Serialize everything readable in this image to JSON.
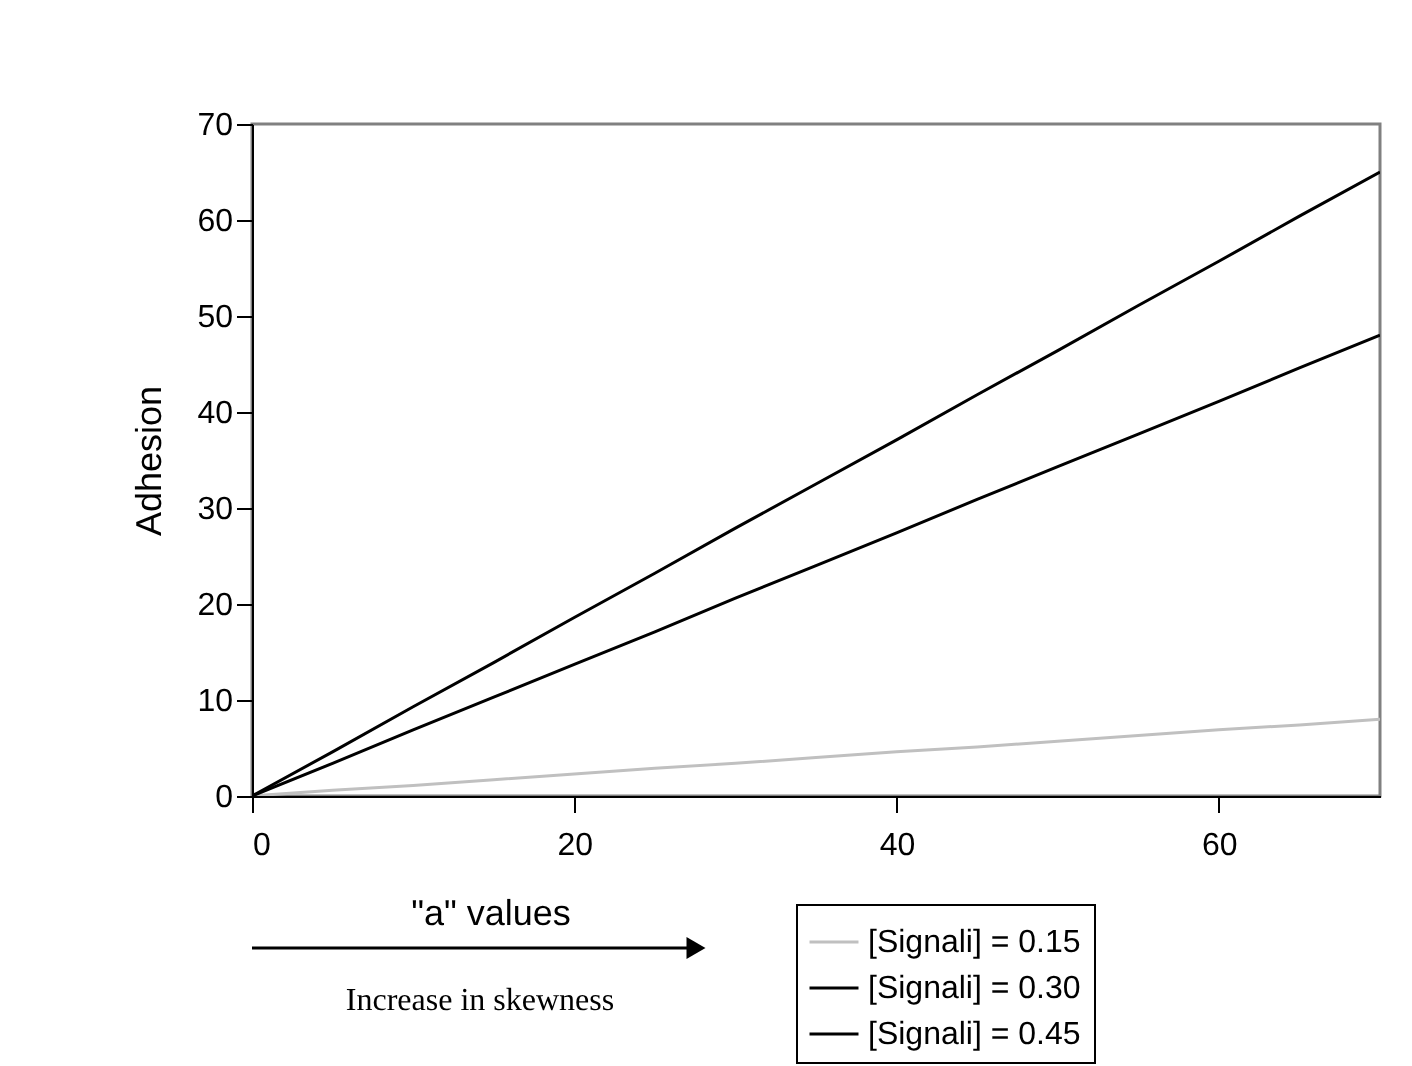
{
  "chart_data": {
    "type": "line",
    "xlabel": "\"a\" values",
    "ylabel": "Adhesion",
    "x": [
      0,
      5,
      10,
      15,
      20,
      25,
      30,
      35,
      40,
      45,
      50,
      55,
      60,
      65,
      70
    ],
    "series": [
      {
        "name": "[Signali] = 0.15",
        "color": "#c0c0c0",
        "values": [
          0,
          0.6,
          1.1,
          1.7,
          2.3,
          2.9,
          3.4,
          4,
          4.6,
          5.1,
          5.7,
          6.3,
          6.9,
          7.4,
          8
        ]
      },
      {
        "name": "[Signali] = 0.30",
        "color": "#000000",
        "values": [
          0,
          3.4,
          6.9,
          10.3,
          13.7,
          17.1,
          20.6,
          24,
          27.4,
          30.9,
          34.3,
          37.7,
          41.1,
          44.6,
          48
        ]
      },
      {
        "name": "[Signali] = 0.45",
        "color": "#000000",
        "values": [
          0,
          4.6,
          9.3,
          13.9,
          18.6,
          23.2,
          27.9,
          32.5,
          37.1,
          41.8,
          46.4,
          51.1,
          55.7,
          60.4,
          65
        ]
      }
    ],
    "xlim": [
      0,
      70
    ],
    "xticks": [
      0,
      20,
      40,
      60
    ],
    "ylim": [
      0,
      70
    ],
    "yticks": [
      0,
      10,
      20,
      30,
      40,
      50,
      60,
      70
    ],
    "grid": false,
    "legend": "bottom right",
    "marker": "none",
    "line_style": "solid",
    "annotations": [
      "Increase in skewness"
    ]
  }
}
